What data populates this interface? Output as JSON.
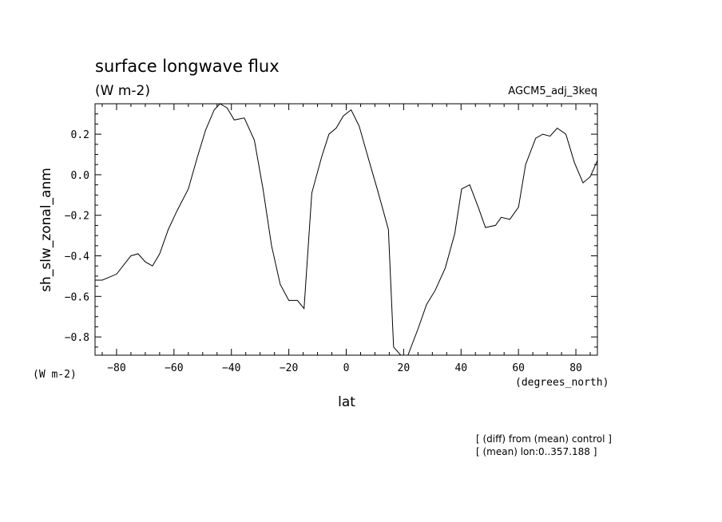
{
  "chart_data": {
    "type": "line",
    "title": "surface longwave flux",
    "subtitle": "(W m-2)",
    "experiment": "AGCM5_adj_3keq",
    "xlabel": "lat",
    "xunits": "(degrees_north)",
    "ylabel": "sh_slw_zonal_anm",
    "yunits": "(W m-2)",
    "xlim": [
      -87.5,
      87.5
    ],
    "ylim": [
      -0.89,
      0.35
    ],
    "xticks": [
      -80,
      -60,
      -40,
      -20,
      0,
      20,
      40,
      60,
      80
    ],
    "xtick_labels": [
      "−80",
      "−60",
      "−40",
      "−20",
      "0",
      "20",
      "40",
      "60",
      "80"
    ],
    "yticks": [
      -0.8,
      -0.6,
      -0.4,
      -0.2,
      0.0,
      0.2
    ],
    "ytick_labels": [
      "−0.8",
      "−0.6",
      "−0.4",
      "−0.2",
      "0.0",
      "0.2"
    ],
    "grid": false,
    "notes": [
      "[ (diff) from (mean) control ]",
      "[ (mean) lon:0..357.188 ]"
    ],
    "series": [
      {
        "x": [
          -87.5,
          -85,
          -80,
          -75,
          -72.5,
          -70,
          -67.5,
          -65,
          -62,
          -59,
          -55,
          -52,
          -49,
          -46,
          -44,
          -41.5,
          -39,
          -35.5,
          -32,
          -29,
          -26,
          -23,
          -20,
          -17,
          -14.7,
          -12,
          -8.5,
          -6,
          -3.5,
          -1,
          1.7,
          4.5,
          7.5,
          11,
          14.7,
          16.5,
          19,
          21.5,
          25,
          28,
          31,
          34.5,
          37.8,
          40.2,
          43,
          46,
          48.5,
          52,
          54,
          57,
          60,
          62.5,
          66,
          68.5,
          71,
          73.5,
          76.5,
          79.5,
          82.5,
          85,
          87.5
        ],
        "y": [
          -0.52,
          -0.52,
          -0.49,
          -0.4,
          -0.39,
          -0.43,
          -0.45,
          -0.39,
          -0.27,
          -0.18,
          -0.07,
          0.08,
          0.22,
          0.32,
          0.35,
          0.33,
          0.27,
          0.28,
          0.17,
          -0.07,
          -0.35,
          -0.54,
          -0.62,
          -0.62,
          -0.66,
          -0.09,
          0.09,
          0.2,
          0.23,
          0.29,
          0.32,
          0.24,
          0.09,
          -0.08,
          -0.27,
          -0.85,
          -0.89,
          -0.89,
          -0.76,
          -0.64,
          -0.57,
          -0.46,
          -0.29,
          -0.07,
          -0.05,
          -0.16,
          -0.26,
          -0.25,
          -0.21,
          -0.22,
          -0.16,
          0.05,
          0.18,
          0.2,
          0.19,
          0.23,
          0.2,
          0.06,
          -0.04,
          -0.01,
          0.07
        ]
      }
    ]
  }
}
